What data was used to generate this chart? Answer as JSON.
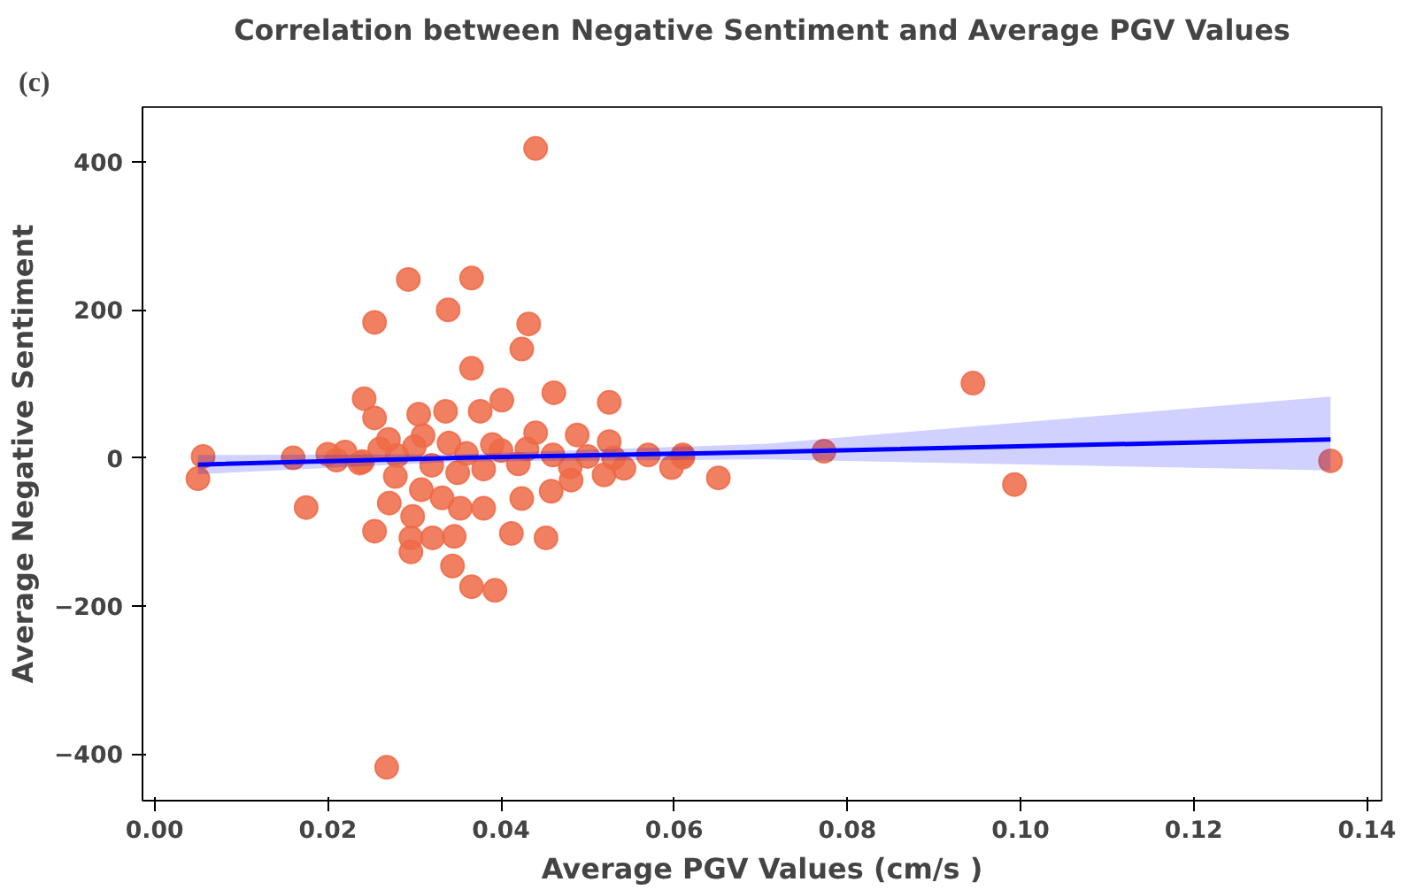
{
  "chart_data": {
    "type": "scatter",
    "title": "Correlation between Negative Sentiment and Average PGV Values",
    "xlabel": "Average PGV Values (cm/s )",
    "ylabel": "Average Negative Sentiment",
    "annotations": [
      "(c)"
    ],
    "xlim": [
      -0.0014,
      0.1417
    ],
    "ylim": [
      -463,
      474
    ],
    "xticks": [
      {
        "value": 0,
        "label": "0.00"
      },
      {
        "value": 0.02,
        "label": "0.02"
      },
      {
        "value": 0.04,
        "label": "0.04"
      },
      {
        "value": 0.06,
        "label": "0.06"
      },
      {
        "value": 0.08,
        "label": "0.08"
      },
      {
        "value": 0.1,
        "label": "0.10"
      },
      {
        "value": 0.12,
        "label": "0.12"
      },
      {
        "value": 0.14,
        "label": "0.14"
      }
    ],
    "yticks": [
      {
        "value": -400,
        "label": "−400"
      },
      {
        "value": -200,
        "label": "−200"
      },
      0,
      200,
      400
    ],
    "grid": false,
    "series": [
      {
        "marker": "circle",
        "color": "#ee6a47",
        "x": [
          0.005,
          0.0056,
          0.016,
          0.0175,
          0.0254,
          0.044,
          0.0293,
          0.0366,
          0.0339,
          0.0254,
          0.0432,
          0.0424,
          0.0366,
          0.0461,
          0.0525,
          0.0242,
          0.0254,
          0.0336,
          0.0376,
          0.0401,
          0.0305,
          0.044,
          0.0488,
          0.0525,
          0.057,
          0.061,
          0.0268,
          0.0366,
          0.0393,
          0.0344,
          0.0296,
          0.0296,
          0.0321,
          0.0346,
          0.0412,
          0.0452,
          0.0298,
          0.0271,
          0.0353,
          0.038,
          0.0424,
          0.0458,
          0.0481,
          0.0519,
          0.0542,
          0.0597,
          0.0332,
          0.0308,
          0.0278,
          0.0237,
          0.061,
          0.0651,
          0.0773,
          0.0945,
          0.0993,
          0.1358,
          0.02,
          0.022,
          0.024,
          0.026,
          0.028,
          0.03,
          0.032,
          0.034,
          0.036,
          0.038,
          0.04,
          0.042,
          0.046,
          0.05,
          0.021,
          0.027,
          0.031,
          0.035,
          0.039,
          0.043,
          0.048,
          0.053
        ],
        "values": [
          -28,
          2,
          0,
          -67,
          -99,
          418,
          241,
          243,
          200,
          183,
          181,
          147,
          121,
          88,
          75,
          80,
          54,
          63,
          63,
          78,
          59,
          34,
          31,
          22,
          4,
          4,
          -418,
          -174,
          -179,
          -146,
          -127,
          -108,
          -108,
          -106,
          -102,
          -108,
          -79,
          -61,
          -68,
          -68,
          -55,
          -45,
          -30,
          -23,
          -14,
          -13,
          -54,
          -43,
          -25,
          -7,
          1,
          -27,
          9,
          101,
          -36,
          -4,
          5,
          8,
          -5,
          12,
          3,
          15,
          -10,
          20,
          6,
          -15,
          10,
          -8,
          4,
          2,
          -3,
          25,
          30,
          -20,
          18,
          12,
          -12,
          0
        ]
      },
      {
        "type": "line",
        "color": "#0000ff",
        "x": [
          0.005,
          0.035,
          0.0705,
          0.1358
        ],
        "values": [
          -9,
          0,
          8,
          25
        ],
        "lower": [
          -22,
          -5,
          -2,
          -17
        ],
        "upper": [
          4,
          5,
          19,
          83
        ]
      }
    ]
  }
}
